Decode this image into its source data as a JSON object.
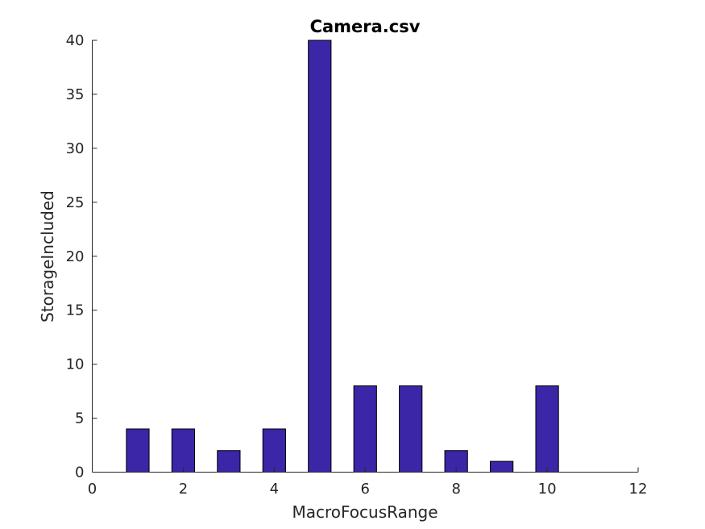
{
  "chart_data": {
    "type": "bar",
    "title": "Camera.csv",
    "xlabel": "MacroFocusRange",
    "ylabel": "StorageIncluded",
    "x": [
      1,
      2,
      3,
      4,
      5,
      6,
      7,
      8,
      9,
      10
    ],
    "values": [
      4,
      4,
      2,
      4,
      40,
      8,
      8,
      2,
      1,
      8
    ],
    "xlim": [
      0,
      12
    ],
    "ylim": [
      0,
      40
    ],
    "xticks": [
      "0",
      "2",
      "4",
      "6",
      "8",
      "10",
      "12"
    ],
    "yticks": [
      "0",
      "5",
      "10",
      "15",
      "20",
      "25",
      "30",
      "35",
      "40"
    ],
    "grid": false,
    "bar_color": "#3a26a6"
  }
}
